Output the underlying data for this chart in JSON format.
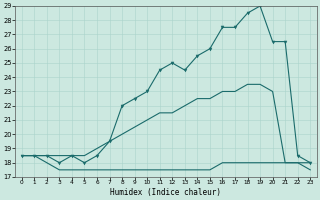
{
  "xlabel": "Humidex (Indice chaleur)",
  "xlim": [
    -0.5,
    23.5
  ],
  "ylim": [
    17,
    29
  ],
  "yticks": [
    17,
    18,
    19,
    20,
    21,
    22,
    23,
    24,
    25,
    26,
    27,
    28,
    29
  ],
  "xticks": [
    0,
    1,
    2,
    3,
    4,
    5,
    6,
    7,
    8,
    9,
    10,
    11,
    12,
    13,
    14,
    15,
    16,
    17,
    18,
    19,
    20,
    21,
    22,
    23
  ],
  "bg_color": "#cce8e0",
  "grid_color": "#aad4cc",
  "line_color": "#1a6b6b",
  "line_max_x": [
    0,
    1,
    2,
    3,
    4,
    5,
    6,
    7,
    8,
    9,
    10,
    11,
    12,
    13,
    14,
    15,
    16,
    17,
    18,
    19,
    20,
    21,
    22,
    23
  ],
  "line_max_y": [
    18.5,
    18.5,
    18.5,
    18.0,
    18.5,
    18.0,
    18.5,
    19.5,
    22.0,
    22.5,
    23.0,
    24.5,
    25.0,
    24.5,
    25.5,
    26.0,
    27.5,
    27.5,
    28.5,
    29.0,
    26.5,
    26.5,
    18.5,
    18.0
  ],
  "line_mid_x": [
    0,
    1,
    2,
    3,
    4,
    5,
    6,
    7,
    8,
    9,
    10,
    11,
    12,
    13,
    14,
    15,
    16,
    17,
    18,
    19,
    20,
    21,
    22,
    23
  ],
  "line_mid_y": [
    18.5,
    18.5,
    18.5,
    18.5,
    18.5,
    18.5,
    19.0,
    19.5,
    20.0,
    20.5,
    21.0,
    21.5,
    21.5,
    22.0,
    22.5,
    22.5,
    23.0,
    23.0,
    23.5,
    23.5,
    23.0,
    18.0,
    18.0,
    18.0
  ],
  "line_min_x": [
    0,
    1,
    2,
    3,
    4,
    5,
    6,
    7,
    8,
    9,
    10,
    11,
    12,
    13,
    14,
    15,
    16,
    17,
    18,
    19,
    20,
    21,
    22,
    23
  ],
  "line_min_y": [
    18.5,
    18.5,
    18.0,
    17.5,
    17.5,
    17.5,
    17.5,
    17.5,
    17.5,
    17.5,
    17.5,
    17.5,
    17.5,
    17.5,
    17.5,
    17.5,
    18.0,
    18.0,
    18.0,
    18.0,
    18.0,
    18.0,
    18.0,
    17.5
  ]
}
